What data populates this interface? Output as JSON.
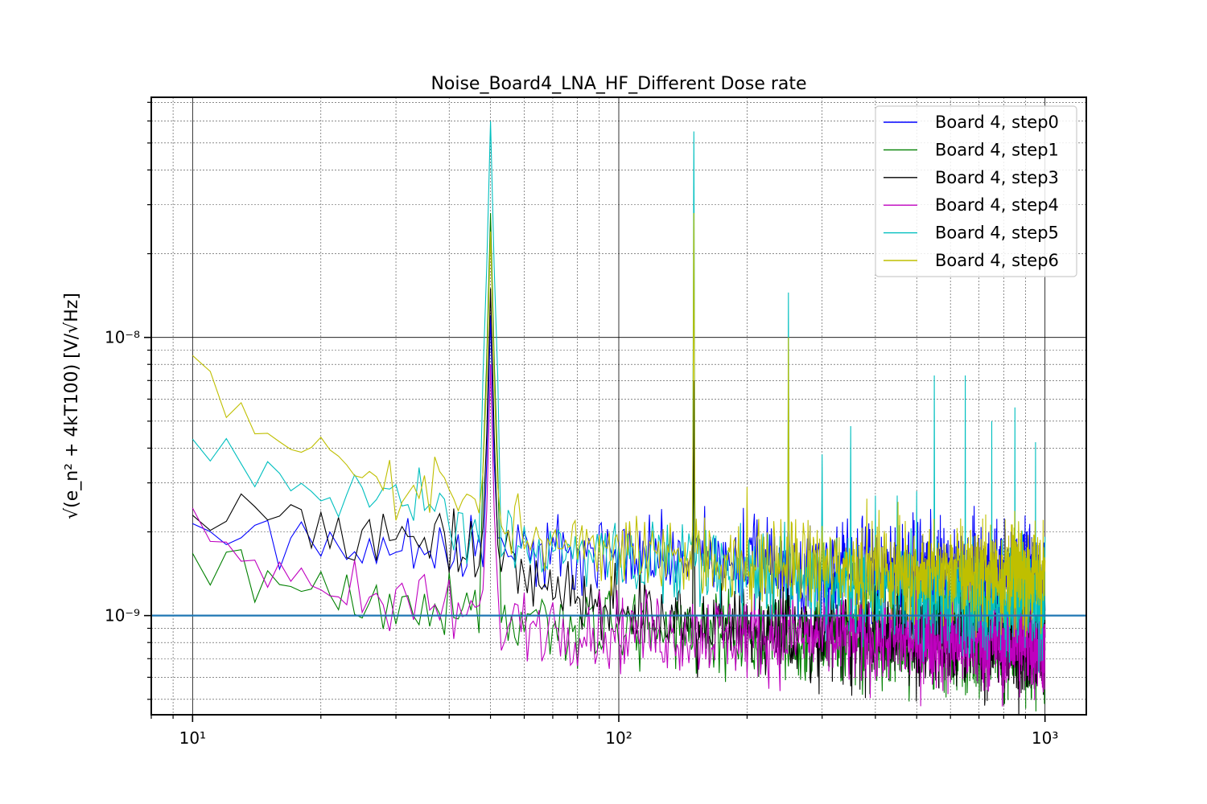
{
  "chart_data": {
    "type": "line",
    "title": "Noise_Board4_LNA_HF_Different Dose rate",
    "ylabel": "√(e_n² + 4kT100) [V/√Hz]",
    "xlabel": "",
    "x_scale": "log",
    "y_scale": "log",
    "xlim": [
      8,
      1250
    ],
    "ylim": [
      4.4e-10,
      7.3e-08
    ],
    "x_ticks": [
      {
        "value": 10,
        "label": "10¹"
      },
      {
        "value": 100,
        "label": "10²"
      },
      {
        "value": 1000,
        "label": "10³"
      }
    ],
    "y_ticks": [
      {
        "value": 1e-09,
        "label": "10⁻⁹"
      },
      {
        "value": 1e-08,
        "label": "10⁻⁸"
      }
    ],
    "grid": true,
    "legend_position": "top-right",
    "reference_line": {
      "y": 1e-09,
      "color": "#1f77b4"
    },
    "series": [
      {
        "name": "Board 4, step0",
        "color": "#0000ff",
        "base_points": [
          [
            10,
            2e-09
          ],
          [
            20,
            1.8e-09
          ],
          [
            40,
            1.8e-09
          ],
          [
            60,
            1.7e-09
          ],
          [
            100,
            1.65e-09
          ],
          [
            200,
            1.55e-09
          ],
          [
            500,
            1.45e-09
          ],
          [
            1000,
            1.35e-09
          ]
        ],
        "spikes": [
          [
            50,
            1.2e-08
          ],
          [
            150,
            7e-09
          ]
        ]
      },
      {
        "name": "Board 4, step1",
        "color": "#008000",
        "base_points": [
          [
            10,
            1.7e-09
          ],
          [
            15,
            1.35e-09
          ],
          [
            20,
            1.15e-09
          ],
          [
            40,
            1.05e-09
          ],
          [
            60,
            9.5e-10
          ],
          [
            100,
            9e-10
          ],
          [
            200,
            8.5e-10
          ],
          [
            500,
            8.2e-10
          ],
          [
            1000,
            8e-10
          ]
        ],
        "spikes": [
          [
            50,
            2.8e-08
          ],
          [
            150,
            5e-09
          ]
        ]
      },
      {
        "name": "Board 4, step3",
        "color": "#000000",
        "base_points": [
          [
            10,
            2.4e-09
          ],
          [
            20,
            2e-09
          ],
          [
            40,
            1.8e-09
          ],
          [
            60,
            1.35e-09
          ],
          [
            100,
            1.05e-09
          ],
          [
            200,
            9e-10
          ],
          [
            500,
            8.5e-10
          ],
          [
            1000,
            8e-10
          ]
        ],
        "spikes": [
          [
            50,
            1.5e-08
          ],
          [
            150,
            7e-09
          ]
        ]
      },
      {
        "name": "Board 4, step4",
        "color": "#bf00bf",
        "base_points": [
          [
            10,
            2e-09
          ],
          [
            20,
            1.3e-09
          ],
          [
            30,
            1.1e-09
          ],
          [
            40,
            1.05e-09
          ],
          [
            60,
            9.5e-10
          ],
          [
            100,
            8.8e-10
          ],
          [
            200,
            8.5e-10
          ],
          [
            500,
            8.2e-10
          ],
          [
            1000,
            8e-10
          ]
        ],
        "spikes": [
          [
            50,
            8e-09
          ]
        ]
      },
      {
        "name": "Board 4, step5",
        "color": "#00bfbf",
        "base_points": [
          [
            10,
            4.2e-09
          ],
          [
            15,
            3.2e-09
          ],
          [
            20,
            2.8e-09
          ],
          [
            30,
            2.6e-09
          ],
          [
            45,
            2.1e-09
          ],
          [
            60,
            1.8e-09
          ],
          [
            100,
            1.6e-09
          ],
          [
            200,
            1.45e-09
          ],
          [
            500,
            1.2e-09
          ],
          [
            1000,
            1.1e-09
          ]
        ],
        "spikes": [
          [
            50,
            6e-08
          ],
          [
            150,
            5.5e-08
          ],
          [
            250,
            1.45e-08
          ],
          [
            300,
            3.8e-09
          ],
          [
            350,
            4.8e-09
          ],
          [
            400,
            2.7e-09
          ],
          [
            450,
            2.7e-09
          ],
          [
            500,
            2.8e-09
          ],
          [
            550,
            7.3e-09
          ],
          [
            650,
            7.3e-09
          ],
          [
            750,
            5e-09
          ],
          [
            850,
            5.6e-09
          ],
          [
            950,
            4.2e-09
          ]
        ]
      },
      {
        "name": "Board 4, step6",
        "color": "#bfbf00",
        "base_points": [
          [
            10,
            7.5e-09
          ],
          [
            12,
            5.5e-09
          ],
          [
            15,
            4.6e-09
          ],
          [
            20,
            3.5e-09
          ],
          [
            30,
            2.9e-09
          ],
          [
            40,
            2.8e-09
          ],
          [
            60,
            2e-09
          ],
          [
            100,
            1.7e-09
          ],
          [
            200,
            1.55e-09
          ],
          [
            500,
            1.45e-09
          ],
          [
            1000,
            1.4e-09
          ]
        ],
        "spikes": [
          [
            50,
            2.4e-08
          ],
          [
            150,
            2.8e-08
          ],
          [
            200,
            2.9e-09
          ],
          [
            250,
            1e-08
          ]
        ]
      }
    ]
  }
}
